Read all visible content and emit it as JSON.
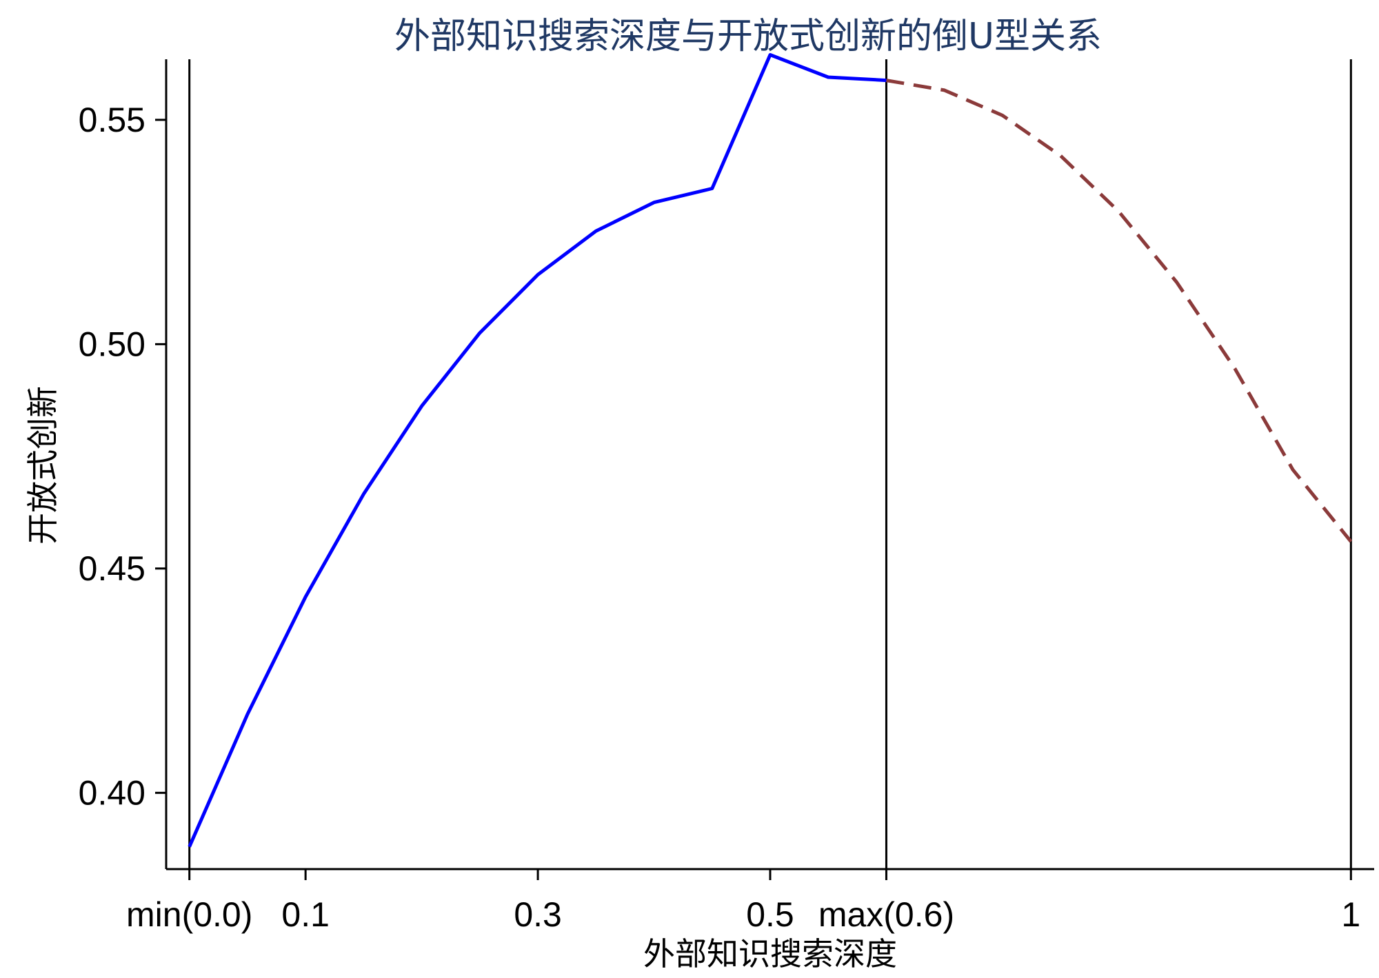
{
  "chart_data": {
    "type": "line",
    "title": "外部知识搜索深度与开放式创新的倒U型关系",
    "xlabel": "外部知识搜索深度",
    "ylabel": "开放式创新",
    "xlim": [
      -0.02,
      1.02
    ],
    "ylim": [
      0.383,
      0.5635
    ],
    "x_ticks": [
      {
        "value": 0.0,
        "label": "min(0.0)"
      },
      {
        "value": 0.1,
        "label": "0.1"
      },
      {
        "value": 0.3,
        "label": "0.3"
      },
      {
        "value": 0.5,
        "label": "0.5"
      },
      {
        "value": 0.6,
        "label": "max(0.6)"
      },
      {
        "value": 1.0,
        "label": "1"
      }
    ],
    "y_ticks": [
      {
        "value": 0.4,
        "label": "0.40"
      },
      {
        "value": 0.45,
        "label": "0.45"
      },
      {
        "value": 0.5,
        "label": "0.50"
      },
      {
        "value": 0.55,
        "label": "0.55"
      }
    ],
    "vertical_lines": [
      0.0,
      0.6,
      1.0
    ],
    "series": [
      {
        "style": "solid",
        "color": "#0000ff",
        "x": [
          0.0,
          0.05,
          0.1,
          0.15,
          0.2,
          0.25,
          0.3,
          0.35,
          0.4,
          0.45,
          0.5,
          0.55,
          0.6
        ],
        "y": [
          0.388,
          0.4175,
          0.4437,
          0.4666,
          0.4862,
          0.5025,
          0.5155,
          0.5252,
          0.5316,
          0.5347,
          0.5645,
          0.5595,
          0.5588
        ]
      },
      {
        "style": "dashed",
        "color": "#8b3a3a",
        "x": [
          0.6,
          0.65,
          0.7,
          0.75,
          0.8,
          0.85,
          0.9,
          0.95,
          1.0
        ],
        "y": [
          0.5588,
          0.5566,
          0.551,
          0.542,
          0.5296,
          0.5138,
          0.4946,
          0.472,
          0.456
        ]
      }
    ]
  }
}
